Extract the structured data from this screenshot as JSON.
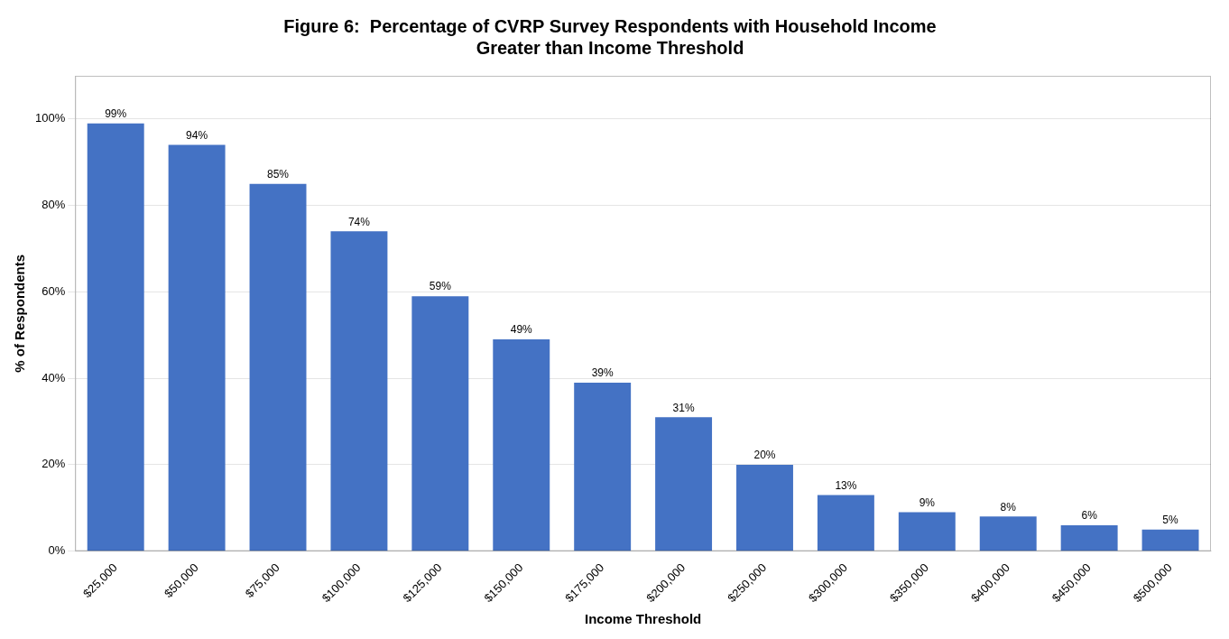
{
  "chart_data": {
    "type": "bar",
    "title": "Figure 6:  Percentage of CVRP Survey Respondents with Household Income\nGreater than Income Threshold",
    "categories": [
      "$25,000",
      "$50,000",
      "$75,000",
      "$100,000",
      "$125,000",
      "$150,000",
      "$175,000",
      "$200,000",
      "$250,000",
      "$300,000",
      "$350,000",
      "$400,000",
      "$450,000",
      "$500,000"
    ],
    "values": [
      99,
      94,
      85,
      74,
      59,
      49,
      39,
      31,
      20,
      13,
      9,
      8,
      6,
      5
    ],
    "value_labels": [
      "99%",
      "94%",
      "85%",
      "74%",
      "59%",
      "49%",
      "39%",
      "31%",
      "20%",
      "13%",
      "9%",
      "8%",
      "6%",
      "5%"
    ],
    "data_labels": true,
    "color": "#4472C4",
    "x_label": "Income Threshold",
    "y_label": "% of Respondents",
    "ylim": [
      0,
      110
    ],
    "yticks": [
      {
        "value": 0,
        "label": "0%"
      },
      {
        "value": 20,
        "label": "20%"
      },
      {
        "value": 40,
        "label": "40%"
      },
      {
        "value": 60,
        "label": "60%"
      },
      {
        "value": 80,
        "label": "80%"
      },
      {
        "value": 100,
        "label": "100%"
      }
    ],
    "grid": true
  }
}
